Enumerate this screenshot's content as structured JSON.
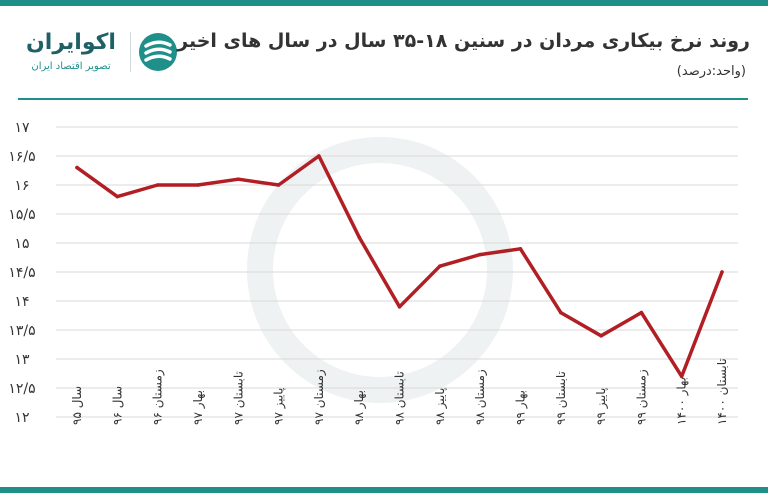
{
  "header": {
    "title": "روند نرخ بیکاری مردان در سنین ۱۸-۳۵ سال در سال های اخیر",
    "unit": "(واحد:درصد)"
  },
  "brand": {
    "name": "اکوایران",
    "tagline": "تصویر اقتصاد ایران",
    "logo_icon": "ecoiran-logo-icon",
    "color": "#1f8f8a"
  },
  "chart_data": {
    "type": "line",
    "title": "روند نرخ بیکاری مردان در سنین ۱۸-۳۵ سال در سال های اخیر",
    "ylabel": "",
    "xlabel": "",
    "ylim": [
      12,
      17
    ],
    "yticks": [
      12,
      12.5,
      13,
      13.5,
      14,
      14.5,
      15,
      15.5,
      16,
      16.5,
      17
    ],
    "ytick_labels": [
      "۱۲",
      "۱۲/۵",
      "۱۳",
      "۱۳/۵",
      "۱۴",
      "۱۴/۵",
      "۱۵",
      "۱۵/۵",
      "۱۶",
      "۱۶/۵",
      "۱۷"
    ],
    "grid": true,
    "line_color": "#b11f24",
    "categories": [
      "سال ۹۵",
      "سال ۹۶",
      "زمستان ۹۶",
      "بهار ۹۷",
      "تابستان ۹۷",
      "پاییز ۹۷",
      "زمستان ۹۷",
      "بهار ۹۸",
      "تابستان ۹۸",
      "پاییز ۹۸",
      "زمستان ۹۸",
      "بهار ۹۹",
      "تابستان ۹۹",
      "پاییز ۹۹",
      "زمستان ۹۹",
      "بهار ۱۴۰۰",
      "تابستان ۱۴۰۰"
    ],
    "values": [
      16.3,
      15.8,
      16.0,
      16.0,
      16.1,
      16.0,
      16.5,
      15.1,
      13.9,
      14.6,
      14.8,
      14.9,
      13.8,
      13.4,
      13.8,
      12.7,
      14.5
    ]
  }
}
